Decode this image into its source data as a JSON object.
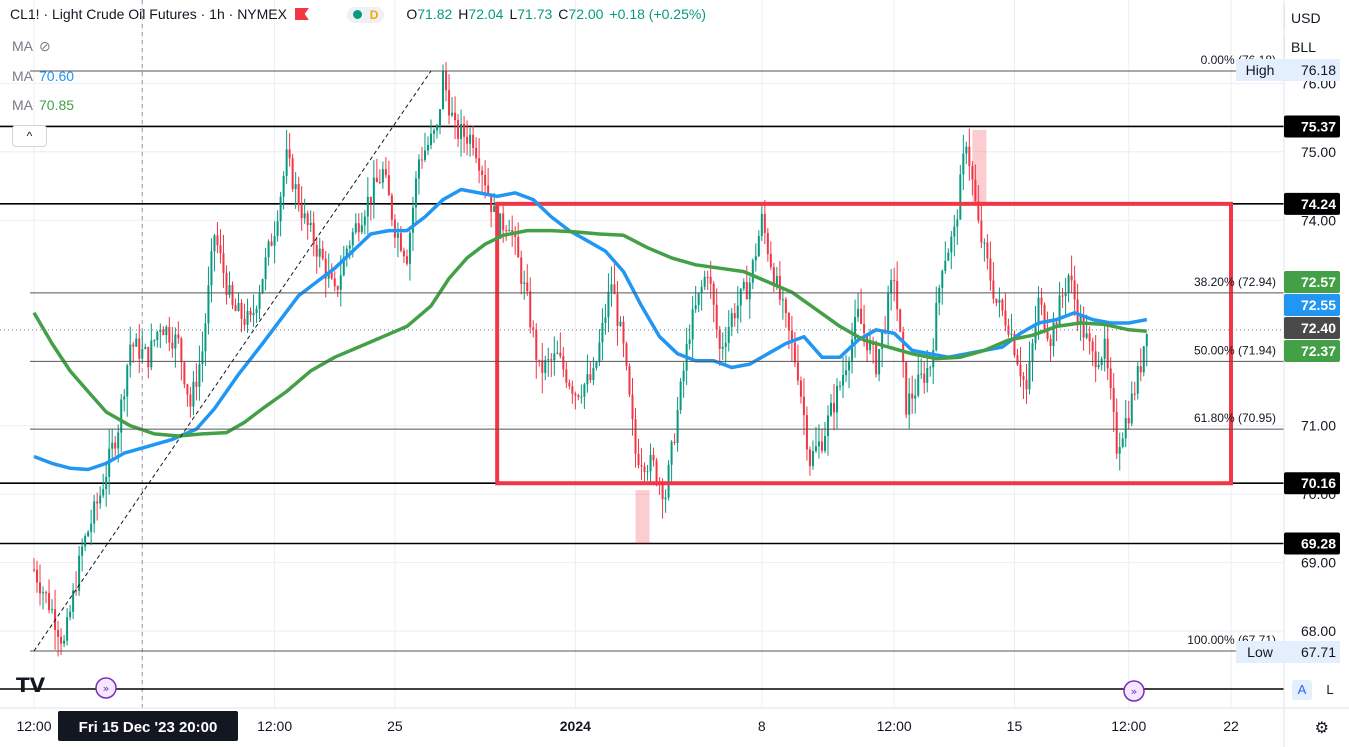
{
  "header": {
    "symbol": "CL1! · Light Crude Oil Futures · 1h · NYMEX",
    "ohlc": [
      {
        "k": "O",
        "v": "71.82"
      },
      {
        "k": "H",
        "v": "72.04"
      },
      {
        "k": "L",
        "v": "71.73"
      },
      {
        "k": "C",
        "v": "72.00"
      },
      {
        "k": "",
        "v": "+0.18 (+0.25%)"
      }
    ],
    "pill_letter": "D",
    "ma_rows": [
      {
        "label": "MA",
        "value": "",
        "color": "#787b86"
      },
      {
        "label": "MA",
        "value": "70.60",
        "color": "#2196f3"
      },
      {
        "label": "MA",
        "value": "70.85",
        "color": "#43a047"
      }
    ],
    "collapse_glyph": "^"
  },
  "top_right": {
    "currency": "USD",
    "unit": "BLL"
  },
  "bottom_right": {
    "auto": "A",
    "log": "L"
  },
  "colors": {
    "up": "#089981",
    "down": "#f23645",
    "ma_fast": "#2196f3",
    "ma_slow": "#43a047",
    "box": "#f23645",
    "hline": "#000000"
  },
  "chart_data": {
    "type": "line",
    "title": "CL1! · Light Crude Oil Futures · 1h · NYMEX",
    "ylim": [
      67.55,
      76.35
    ],
    "y_ticks": [
      {
        "label": "76.00",
        "value": 76.0
      },
      {
        "label": "75.00",
        "value": 75.0
      },
      {
        "label": "74.00",
        "value": 74.0
      },
      {
        "label": "71.00",
        "value": 71.0
      },
      {
        "label": "70.00",
        "value": 70.0
      },
      {
        "label": "69.00",
        "value": 69.0
      },
      {
        "label": "68.00",
        "value": 68.0
      }
    ],
    "x_ticks": [
      "12:00",
      "Fri 15 Dec '23  20:00",
      "12:00",
      "25",
      "2024",
      "8",
      "12:00",
      "15",
      "12:00",
      "22"
    ],
    "x_tick_index": [
      0,
      18,
      40,
      60,
      90,
      121,
      143,
      163,
      182,
      199
    ],
    "levels": [
      {
        "label": "75.37",
        "value": 75.37
      },
      {
        "label": "74.24",
        "value": 74.24
      },
      {
        "label": "70.16",
        "value": 70.16
      },
      {
        "label": "69.28",
        "value": 69.28
      }
    ],
    "right_labels": [
      {
        "text": "72.57",
        "value": 72.57,
        "color": "#43a047"
      },
      {
        "text": "72.55",
        "value": 72.55,
        "color": "#2196f3"
      },
      {
        "text": "72.40",
        "value": 72.4,
        "color": "#4a4a4a"
      },
      {
        "text": "72.37",
        "value": 72.37,
        "color": "#43a047"
      }
    ],
    "extremes": [
      {
        "tag": "High",
        "price": "76.18",
        "value": 76.18
      },
      {
        "tag": "Low",
        "price": "67.71",
        "value": 67.71
      }
    ],
    "fib_levels": [
      {
        "label": "0.00% (76.18)",
        "value": 76.18
      },
      {
        "label": "38.20% (72.94)",
        "value": 72.94
      },
      {
        "label": "50.00% (71.94)",
        "value": 71.94
      },
      {
        "label": "61.80% (70.95)",
        "value": 70.95
      },
      {
        "label": "100.00% (67.71)",
        "value": 67.71
      }
    ],
    "range_box": {
      "y_high": 74.24,
      "y_low": 70.16,
      "x_start": 77,
      "x_end": 199
    },
    "price_path": [
      [
        0,
        68.9
      ],
      [
        3,
        68.3
      ],
      [
        5,
        67.8
      ],
      [
        8,
        69.2
      ],
      [
        11,
        70.0
      ],
      [
        14,
        71.0
      ],
      [
        16,
        72.2
      ],
      [
        19,
        72.0
      ],
      [
        21,
        72.5
      ],
      [
        24,
        72.2
      ],
      [
        26,
        71.3
      ],
      [
        28,
        72.1
      ],
      [
        30,
        73.8
      ],
      [
        33,
        72.7
      ],
      [
        36,
        72.5
      ],
      [
        38,
        73.2
      ],
      [
        40,
        73.9
      ],
      [
        42,
        74.9
      ],
      [
        45,
        74.0
      ],
      [
        48,
        73.4
      ],
      [
        50,
        72.9
      ],
      [
        52,
        73.6
      ],
      [
        55,
        74.2
      ],
      [
        58,
        74.7
      ],
      [
        60,
        73.9
      ],
      [
        62,
        73.5
      ],
      [
        64,
        74.9
      ],
      [
        67,
        75.3
      ],
      [
        68,
        76.1
      ],
      [
        70,
        75.3
      ],
      [
        73,
        75.2
      ],
      [
        75,
        74.6
      ],
      [
        77,
        73.9
      ],
      [
        79,
        74.0
      ],
      [
        82,
        72.8
      ],
      [
        84,
        71.8
      ],
      [
        87,
        72.0
      ],
      [
        90,
        71.5
      ],
      [
        93,
        71.7
      ],
      [
        96,
        73.1
      ],
      [
        98,
        72.1
      ],
      [
        100,
        70.6
      ],
      [
        103,
        70.4
      ],
      [
        105,
        70.0
      ],
      [
        107,
        71.2
      ],
      [
        109,
        72.4
      ],
      [
        112,
        73.3
      ],
      [
        114,
        72.1
      ],
      [
        116,
        72.6
      ],
      [
        119,
        73.1
      ],
      [
        121,
        74.0
      ],
      [
        123,
        73.2
      ],
      [
        125,
        72.5
      ],
      [
        127,
        71.8
      ],
      [
        129,
        70.5
      ],
      [
        131,
        70.8
      ],
      [
        134,
        71.6
      ],
      [
        137,
        72.6
      ],
      [
        140,
        71.9
      ],
      [
        143,
        73.2
      ],
      [
        145,
        71.3
      ],
      [
        147,
        71.6
      ],
      [
        149,
        71.9
      ],
      [
        151,
        73.4
      ],
      [
        153,
        73.8
      ],
      [
        155,
        75.2
      ],
      [
        157,
        73.9
      ],
      [
        160,
        72.8
      ],
      [
        162,
        72.5
      ],
      [
        165,
        71.5
      ],
      [
        167,
        72.8
      ],
      [
        169,
        72.3
      ],
      [
        172,
        73.2
      ],
      [
        174,
        72.5
      ],
      [
        176,
        72.0
      ],
      [
        178,
        72.1
      ],
      [
        180,
        70.7
      ],
      [
        182,
        71.2
      ],
      [
        184,
        71.9
      ],
      [
        185,
        72.5
      ]
    ],
    "series": [
      {
        "name": "MA",
        "values": [
          [
            0,
            70.55
          ],
          [
            3,
            70.45
          ],
          [
            6,
            70.38
          ],
          [
            9,
            70.36
          ],
          [
            12,
            70.45
          ],
          [
            15,
            70.6
          ],
          [
            19,
            70.7
          ],
          [
            23,
            70.8
          ],
          [
            27,
            70.95
          ],
          [
            30,
            71.25
          ],
          [
            34,
            71.75
          ],
          [
            38,
            72.2
          ],
          [
            41,
            72.55
          ],
          [
            44,
            72.9
          ],
          [
            47,
            73.1
          ],
          [
            50,
            73.3
          ],
          [
            53,
            73.55
          ],
          [
            56,
            73.8
          ],
          [
            59,
            73.85
          ],
          [
            62,
            73.85
          ],
          [
            65,
            74.05
          ],
          [
            68,
            74.3
          ],
          [
            71,
            74.45
          ],
          [
            74,
            74.4
          ],
          [
            77,
            74.35
          ],
          [
            80,
            74.4
          ],
          [
            83,
            74.3
          ],
          [
            86,
            74.05
          ],
          [
            89,
            73.85
          ],
          [
            92,
            73.7
          ],
          [
            95,
            73.55
          ],
          [
            98,
            73.25
          ],
          [
            101,
            72.75
          ],
          [
            104,
            72.3
          ],
          [
            107,
            72.05
          ],
          [
            110,
            71.95
          ],
          [
            113,
            71.95
          ],
          [
            116,
            71.85
          ],
          [
            119,
            71.9
          ],
          [
            122,
            72.05
          ],
          [
            125,
            72.2
          ],
          [
            128,
            72.3
          ],
          [
            131,
            72.0
          ],
          [
            134,
            72.0
          ],
          [
            137,
            72.25
          ],
          [
            140,
            72.4
          ],
          [
            143,
            72.35
          ],
          [
            146,
            72.1
          ],
          [
            149,
            72.05
          ],
          [
            152,
            72.0
          ],
          [
            155,
            72.05
          ],
          [
            158,
            72.1
          ],
          [
            161,
            72.15
          ],
          [
            164,
            72.35
          ],
          [
            167,
            72.5
          ],
          [
            170,
            72.55
          ],
          [
            173,
            72.65
          ],
          [
            176,
            72.55
          ],
          [
            179,
            72.5
          ],
          [
            182,
            72.5
          ],
          [
            185,
            72.55
          ]
        ]
      },
      {
        "name": "MA",
        "values": [
          [
            0,
            72.65
          ],
          [
            3,
            72.2
          ],
          [
            6,
            71.8
          ],
          [
            9,
            71.5
          ],
          [
            12,
            71.2
          ],
          [
            16,
            71.0
          ],
          [
            20,
            70.88
          ],
          [
            24,
            70.85
          ],
          [
            28,
            70.88
          ],
          [
            32,
            70.9
          ],
          [
            35,
            71.05
          ],
          [
            38,
            71.25
          ],
          [
            42,
            71.5
          ],
          [
            46,
            71.8
          ],
          [
            50,
            72.0
          ],
          [
            54,
            72.15
          ],
          [
            58,
            72.3
          ],
          [
            62,
            72.45
          ],
          [
            66,
            72.75
          ],
          [
            69,
            73.15
          ],
          [
            72,
            73.45
          ],
          [
            75,
            73.65
          ],
          [
            78,
            73.78
          ],
          [
            82,
            73.85
          ],
          [
            86,
            73.85
          ],
          [
            90,
            73.83
          ],
          [
            94,
            73.8
          ],
          [
            98,
            73.78
          ],
          [
            102,
            73.6
          ],
          [
            106,
            73.45
          ],
          [
            110,
            73.35
          ],
          [
            114,
            73.3
          ],
          [
            118,
            73.25
          ],
          [
            122,
            73.1
          ],
          [
            126,
            72.95
          ],
          [
            130,
            72.7
          ],
          [
            134,
            72.45
          ],
          [
            138,
            72.25
          ],
          [
            142,
            72.15
          ],
          [
            146,
            72.05
          ],
          [
            150,
            71.98
          ],
          [
            154,
            72.0
          ],
          [
            158,
            72.1
          ],
          [
            162,
            72.25
          ],
          [
            166,
            72.32
          ],
          [
            170,
            72.45
          ],
          [
            174,
            72.5
          ],
          [
            178,
            72.48
          ],
          [
            182,
            72.4
          ],
          [
            185,
            72.38
          ]
        ]
      }
    ]
  }
}
